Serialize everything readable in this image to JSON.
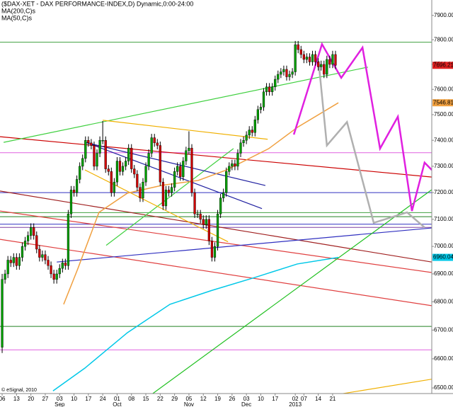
{
  "chart_data": {
    "type": "candlestick",
    "title": "($DAX-XET - DAX PERFORMANCE-INDEX,D) Dynamic,0:00-24:00",
    "credit": "© eSignal, 2010",
    "log": true,
    "xlim": [
      -0.75,
      149.5
    ],
    "ylim": [
      6481,
      7964
    ],
    "yticks": [
      {
        "value": 7900,
        "label": "7900.00"
      },
      {
        "value": 7800,
        "label": "7800.00"
      },
      {
        "value": 7700,
        "label": "7700.00"
      },
      {
        "value": 7600,
        "label": "7600.00"
      },
      {
        "value": 7500,
        "label": "7500.00"
      },
      {
        "value": 7400,
        "label": "7400.00"
      },
      {
        "value": 7300,
        "label": "7300.00"
      },
      {
        "value": 7200,
        "label": "7200.00"
      },
      {
        "value": 7100,
        "label": "7100.00"
      },
      {
        "value": 7000,
        "label": "7000.00"
      },
      {
        "value": 6900,
        "label": "6900.00"
      },
      {
        "value": 6800,
        "label": "6800.00"
      },
      {
        "value": 6700,
        "label": "6700.00"
      },
      {
        "value": 6600,
        "label": "6600.00"
      },
      {
        "value": 6500,
        "label": "6500.00"
      }
    ],
    "xticks": [
      {
        "value": 0,
        "label": "06"
      },
      {
        "value": 5,
        "label": "13"
      },
      {
        "value": 10,
        "label": "20"
      },
      {
        "value": 15,
        "label": "27"
      },
      {
        "value": 20,
        "label": "03"
      },
      {
        "value": 25,
        "label": "10"
      },
      {
        "value": 30,
        "label": "17"
      },
      {
        "value": 35,
        "label": "24"
      },
      {
        "value": 40,
        "label": "01"
      },
      {
        "value": 45,
        "label": "08"
      },
      {
        "value": 50,
        "label": "15"
      },
      {
        "value": 55,
        "label": "22"
      },
      {
        "value": 60,
        "label": "29"
      },
      {
        "value": 65,
        "label": "05"
      },
      {
        "value": 70,
        "label": "12"
      },
      {
        "value": 75,
        "label": "19"
      },
      {
        "value": 80,
        "label": "26"
      },
      {
        "value": 85,
        "label": "03"
      },
      {
        "value": 90,
        "label": "10"
      },
      {
        "value": 95,
        "label": "17"
      },
      {
        "value": 102,
        "label": "02"
      },
      {
        "value": 105,
        "label": "07"
      },
      {
        "value": 110,
        "label": "14"
      },
      {
        "value": 115,
        "label": "21"
      }
    ],
    "month_ticks": [
      {
        "value": 20,
        "label": "Sep"
      },
      {
        "value": 40,
        "label": "Oct"
      },
      {
        "value": 65,
        "label": "Nov"
      },
      {
        "value": 85,
        "label": "Dec"
      },
      {
        "value": 102,
        "label": "2013"
      }
    ],
    "up_color": "#00a000",
    "down_color": "#d00000",
    "last_color": "#e02020",
    "candles": [
      [
        6640,
        6900,
        6620,
        6880
      ],
      [
        6880,
        6915,
        6865,
        6900
      ],
      [
        6900,
        6965,
        6885,
        6950
      ],
      [
        6950,
        6965,
        6925,
        6940
      ],
      [
        6940,
        6975,
        6925,
        6960
      ],
      [
        6960,
        6975,
        6915,
        6930
      ],
      [
        6930,
        6975,
        6915,
        6960
      ],
      [
        6960,
        7015,
        6945,
        7000
      ],
      [
        7000,
        7035,
        6985,
        7020
      ],
      [
        7020,
        7055,
        7005,
        7040
      ],
      [
        7040,
        7085,
        7025,
        7070
      ],
      [
        7070,
        7085,
        7025,
        7040
      ],
      [
        7040,
        7055,
        6975,
        6990
      ],
      [
        6990,
        7005,
        6945,
        6960
      ],
      [
        6960,
        6985,
        6945,
        6970
      ],
      [
        6970,
        6985,
        6935,
        6950
      ],
      [
        6950,
        6965,
        6915,
        6930
      ],
      [
        6930,
        6945,
        6885,
        6900
      ],
      [
        6900,
        6915,
        6865,
        6880
      ],
      [
        6880,
        6915,
        6865,
        6900
      ],
      [
        6900,
        6935,
        6885,
        6920
      ],
      [
        6920,
        6955,
        6905,
        6940
      ],
      [
        6940,
        6955,
        6915,
        6930
      ],
      [
        6930,
        7135,
        6915,
        7120
      ],
      [
        7120,
        7225,
        7105,
        7210
      ],
      [
        7210,
        7225,
        7185,
        7200
      ],
      [
        7200,
        7265,
        7185,
        7250
      ],
      [
        7250,
        7315,
        7235,
        7300
      ],
      [
        7300,
        7345,
        7285,
        7330
      ],
      [
        7330,
        7415,
        7315,
        7400
      ],
      [
        7400,
        7415,
        7375,
        7390
      ],
      [
        7390,
        7405,
        7365,
        7380
      ],
      [
        7380,
        7395,
        7285,
        7300
      ],
      [
        7300,
        7365,
        7285,
        7350
      ],
      [
        7350,
        7415,
        7335,
        7400
      ],
      [
        7400,
        7475,
        7385,
        7400
      ],
      [
        7400,
        7415,
        7275,
        7290
      ],
      [
        7290,
        7305,
        7265,
        7280
      ],
      [
        7280,
        7295,
        7185,
        7200
      ],
      [
        7200,
        7255,
        7185,
        7240
      ],
      [
        7240,
        7335,
        7225,
        7320
      ],
      [
        7320,
        7335,
        7265,
        7280
      ],
      [
        7280,
        7315,
        7265,
        7300
      ],
      [
        7300,
        7335,
        7285,
        7320
      ],
      [
        7320,
        7385,
        7305,
        7370
      ],
      [
        7370,
        7385,
        7275,
        7290
      ],
      [
        7290,
        7305,
        7255,
        7270
      ],
      [
        7270,
        7285,
        7205,
        7220
      ],
      [
        7220,
        7235,
        7165,
        7180
      ],
      [
        7180,
        7255,
        7165,
        7240
      ],
      [
        7240,
        7315,
        7225,
        7300
      ],
      [
        7300,
        7365,
        7285,
        7350
      ],
      [
        7350,
        7425,
        7335,
        7410
      ],
      [
        7410,
        7425,
        7375,
        7390
      ],
      [
        7390,
        7405,
        7365,
        7380
      ],
      [
        7380,
        7395,
        7225,
        7240
      ],
      [
        7240,
        7255,
        7135,
        7150
      ],
      [
        7150,
        7225,
        7135,
        7210
      ],
      [
        7210,
        7225,
        7185,
        7200
      ],
      [
        7200,
        7235,
        7185,
        7220
      ],
      [
        7220,
        7295,
        7205,
        7280
      ],
      [
        7280,
        7315,
        7265,
        7300
      ],
      [
        7300,
        7315,
        7245,
        7260
      ],
      [
        7260,
        7335,
        7245,
        7320
      ],
      [
        7320,
        7375,
        7305,
        7360
      ],
      [
        7360,
        7435,
        7345,
        7370
      ],
      [
        7370,
        7385,
        7185,
        7200
      ],
      [
        7200,
        7215,
        7105,
        7120
      ],
      [
        7120,
        7135,
        7105,
        7120
      ],
      [
        7120,
        7135,
        7085,
        7100
      ],
      [
        7100,
        7115,
        7065,
        7080
      ],
      [
        7080,
        7115,
        7065,
        7100
      ],
      [
        7100,
        7115,
        7005,
        7020
      ],
      [
        7020,
        7035,
        6945,
        6960
      ],
      [
        6960,
        7015,
        6945,
        7000
      ],
      [
        7000,
        7135,
        6985,
        7120
      ],
      [
        7120,
        7195,
        7105,
        7180
      ],
      [
        7180,
        7215,
        7165,
        7200
      ],
      [
        7200,
        7295,
        7185,
        7280
      ],
      [
        7280,
        7315,
        7265,
        7300
      ],
      [
        7300,
        7325,
        7285,
        7310
      ],
      [
        7310,
        7325,
        7285,
        7300
      ],
      [
        7300,
        7365,
        7285,
        7350
      ],
      [
        7350,
        7405,
        7335,
        7390
      ],
      [
        7390,
        7415,
        7375,
        7400
      ],
      [
        7400,
        7435,
        7385,
        7420
      ],
      [
        7420,
        7455,
        7405,
        7440
      ],
      [
        7440,
        7455,
        7415,
        7430
      ],
      [
        7430,
        7495,
        7415,
        7480
      ],
      [
        7480,
        7535,
        7465,
        7520
      ],
      [
        7520,
        7545,
        7505,
        7530
      ],
      [
        7530,
        7605,
        7515,
        7590
      ],
      [
        7590,
        7625,
        7575,
        7610
      ],
      [
        7610,
        7625,
        7575,
        7590
      ],
      [
        7590,
        7625,
        7575,
        7610
      ],
      [
        7610,
        7655,
        7595,
        7640
      ],
      [
        7640,
        7675,
        7625,
        7660
      ],
      [
        7660,
        7685,
        7645,
        7670
      ],
      [
        7670,
        7695,
        7655,
        7680
      ],
      [
        7680,
        7695,
        7635,
        7650
      ],
      [
        7650,
        7675,
        7635,
        7660
      ],
      [
        7660,
        7685,
        7645,
        7670
      ],
      [
        7670,
        7795,
        7655,
        7780
      ],
      [
        7780,
        7795,
        7745,
        7760
      ],
      [
        7760,
        7775,
        7725,
        7740
      ],
      [
        7740,
        7755,
        7705,
        7720
      ],
      [
        7720,
        7745,
        7705,
        7730
      ],
      [
        7730,
        7745,
        7695,
        7710
      ],
      [
        7710,
        7755,
        7695,
        7740
      ],
      [
        7740,
        7755,
        7695,
        7710
      ],
      [
        7710,
        7725,
        7675,
        7690
      ],
      [
        7690,
        7715,
        7675,
        7700
      ],
      [
        7700,
        7715,
        7645,
        7660
      ],
      [
        7660,
        7735,
        7645,
        7720
      ],
      [
        7720,
        7735,
        7685,
        7700
      ],
      [
        7700,
        7755,
        7685,
        7740
      ],
      [
        7740,
        7755,
        7681,
        7696.21
      ]
    ],
    "series": [
      {
        "name": "MA(200,C)s",
        "color": "#00c8e8",
        "x": [
          17.7,
          28.8,
          43.6,
          58.4,
          73.1,
          87.9,
          102.7,
          117
        ],
        "values": [
          6490,
          6568,
          6691,
          6791,
          6841,
          6887,
          6936,
          6960.04
        ]
      },
      {
        "name": "MA(50,C)s",
        "color": "#f0a040",
        "x": [
          21.4,
          26.3,
          33.7,
          43.6,
          55.9,
          68.2,
          78.1,
          92.8,
          102.7,
          117
        ],
        "values": [
          6791,
          6918,
          7126,
          7198,
          7228,
          7246,
          7286,
          7368,
          7450,
          7546.81
        ]
      }
    ],
    "hlines": [
      {
        "value": 7790,
        "color": "#40a040"
      },
      {
        "value": 7352,
        "color": "#e060e0"
      },
      {
        "value": 7200,
        "color": "#3030c0"
      },
      {
        "value": 7125,
        "color": "#40a040"
      },
      {
        "value": 7110,
        "color": "#208020"
      },
      {
        "value": 7082,
        "color": "#3030c0"
      },
      {
        "value": 7070,
        "color": "#8040a0"
      },
      {
        "value": 6713,
        "color": "#208020"
      },
      {
        "value": 6631,
        "color": "#e060e0"
      }
    ],
    "lines": [
      {
        "color": "#cc0000",
        "x": [
          -0.75,
          149.5
        ],
        "values": [
          7414,
          7259
        ]
      },
      {
        "color": "#e04040",
        "x": [
          -0.75,
          149.5
        ],
        "values": [
          7131,
          6905
        ]
      },
      {
        "color": "#e04040",
        "x": [
          -0.75,
          149.5
        ],
        "values": [
          7026,
          6786
        ]
      },
      {
        "color": "#a02020",
        "x": [
          -0.75,
          149.5
        ],
        "values": [
          7206,
          6943
        ]
      },
      {
        "color": "#3030c0",
        "x": [
          19,
          149.5
        ],
        "values": [
          6943,
          7068
        ]
      },
      {
        "color": "#40d040",
        "x": [
          0.5,
          127.3
        ],
        "values": [
          7392,
          7689
        ]
      },
      {
        "color": "#40d040",
        "x": [
          36.2,
          80.5
        ],
        "values": [
          7004,
          7368
        ]
      },
      {
        "color": "#20c020",
        "x": [
          51,
          149.5
        ],
        "values": [
          6471,
          7211
        ]
      },
      {
        "color": "#f0b000",
        "x": [
          35,
          92.4
        ],
        "values": [
          7478,
          7404
        ]
      },
      {
        "color": "#f0b000",
        "x": [
          28.8,
          78.6
        ],
        "values": [
          7286,
          7017
        ]
      },
      {
        "color": "#f0b000",
        "x": [
          118,
          149.5
        ],
        "values": [
          6480,
          6530
        ]
      },
      {
        "color": "#2020a0",
        "x": [
          28.8,
          91.6
        ],
        "values": [
          7392,
          7227
        ]
      },
      {
        "color": "#2020a0",
        "x": [
          31.3,
          90.4
        ],
        "values": [
          7383,
          7140
        ]
      }
    ],
    "projections": [
      {
        "color": "#b0b0b0",
        "x": [
          110.1,
          113,
          120,
          129.3,
          140.9,
          147
        ],
        "values": [
          7714,
          7380,
          7471,
          7087,
          7126,
          7070
        ]
      },
      {
        "color": "#e020e0",
        "x": [
          101.5,
          111.3,
          118,
          125.4,
          131.5,
          137.7,
          142.6,
          147,
          149.5
        ],
        "values": [
          7422,
          7782,
          7646,
          7768,
          7368,
          7492,
          7131,
          7314,
          7286
        ]
      }
    ]
  }
}
